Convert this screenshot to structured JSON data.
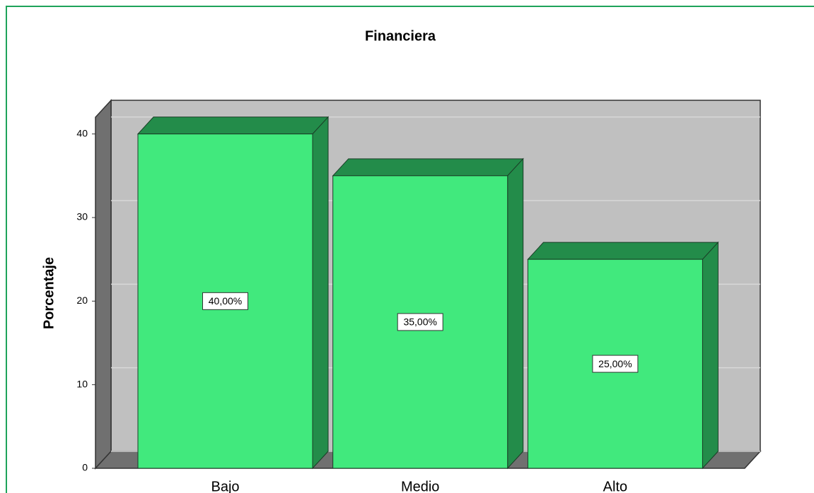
{
  "chart_data": {
    "type": "bar3d",
    "title": "Financiera",
    "y_label": "Porcentaje",
    "categories": [
      "Bajo",
      "Medio",
      "Alto"
    ],
    "values": [
      40,
      35,
      25
    ],
    "value_labels": [
      "40,00%",
      "35,00%",
      "25,00%"
    ],
    "color": "#41e97d",
    "ylim": [
      0,
      42
    ],
    "yticks": [
      0,
      10,
      20,
      30,
      40
    ],
    "grid": true
  }
}
